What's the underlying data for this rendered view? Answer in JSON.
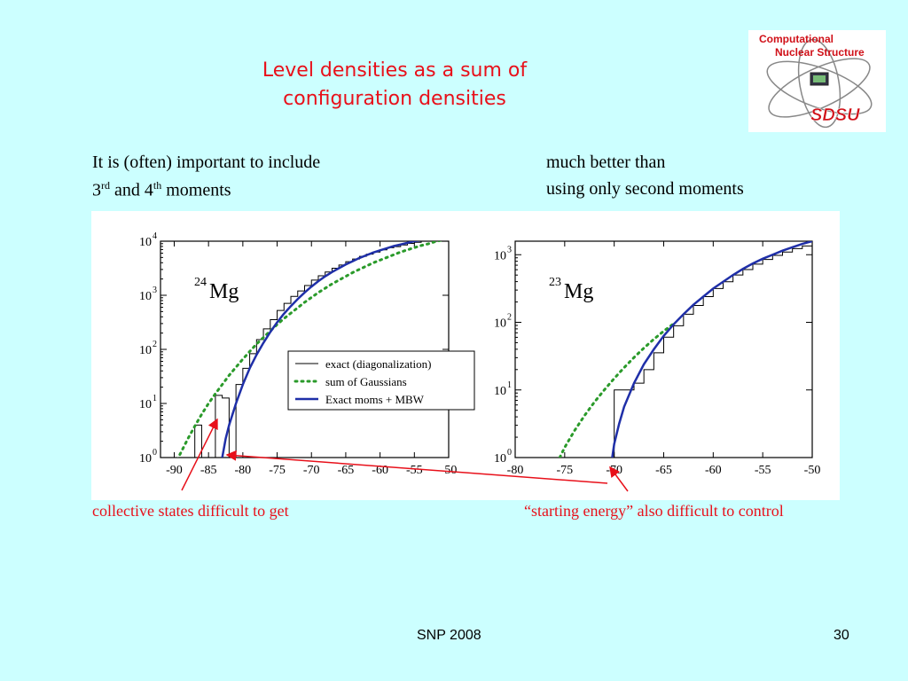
{
  "slide": {
    "title_line1": "Level densities as a sum of",
    "title_line2": "configuration densities",
    "left_text_line1": "It is (often) important to include",
    "left_text_line2_moment3": "3",
    "left_text_line2_sup1": "rd",
    "left_text_line2_and": " and 4",
    "left_text_line2_sup2": "th",
    "left_text_line2_end": " moments",
    "right_text_line1": "much better than",
    "right_text_line2": "using only second moments",
    "caption_left": "collective states difficult to get",
    "caption_right": "“starting energy” also difficult to control",
    "footer_left": "SNP 2008",
    "footer_right": "30",
    "logo_line1": "Computational",
    "logo_line2": "Nuclear Structure",
    "logo_brand": "SDSU"
  },
  "colors": {
    "title": "#e8101a",
    "background": "#ccffff",
    "gaussian": "#2a9a2a",
    "mbw": "#1f2fa8",
    "arrow": "#e8101a"
  },
  "chart_data": [
    {
      "type": "line",
      "annotation_mass": "24",
      "annotation_element": "Mg",
      "xlim": [
        -92,
        -50
      ],
      "ylim": [
        0,
        4
      ],
      "y_log_scale": true,
      "x_ticks": [
        "-90",
        "-85",
        "-80",
        "-75",
        "-70",
        "-65",
        "-60",
        "-55",
        "-50"
      ],
      "y_ticks": [
        "10",
        "10",
        "10",
        "10",
        "10"
      ],
      "y_tick_exponents": [
        "0",
        "1",
        "2",
        "3",
        "4"
      ],
      "legend_position": "lower-right",
      "legend": [
        "exact (diagonalization)",
        "sum of Gaussians",
        "Exact moms + MBW"
      ],
      "series": [
        {
          "name": "exact (diagonalization)",
          "style": "step",
          "x": [
            -88,
            -87,
            -86,
            -85,
            -84,
            -83,
            -82,
            -81,
            -80,
            -79,
            -78,
            -77,
            -76,
            -75,
            -74,
            -73,
            -72,
            -71,
            -70,
            -69,
            -68,
            -67,
            -66,
            -65,
            -64,
            -63,
            -62,
            -61,
            -60,
            -59,
            -58,
            -57,
            -56,
            -55,
            -54,
            -53,
            -52,
            -51,
            -50
          ],
          "y": [
            0,
            0.6,
            0,
            0,
            1.15,
            1.1,
            0,
            1.35,
            1.65,
            1.92,
            2.18,
            2.38,
            2.55,
            2.72,
            2.85,
            2.98,
            3.08,
            3.18,
            3.28,
            3.36,
            3.43,
            3.5,
            3.56,
            3.62,
            3.67,
            3.72,
            3.76,
            3.8,
            3.84,
            3.88,
            3.9,
            3.93,
            3.96,
            3.98,
            4.0,
            4.02,
            4.04,
            4.06,
            4.07
          ]
        },
        {
          "name": "sum of Gaussians",
          "style": "dotted",
          "x": [
            -90,
            -89,
            -88,
            -87,
            -86,
            -85,
            -84,
            -83,
            -82,
            -81,
            -80,
            -79,
            -78,
            -77,
            -76,
            -75,
            -74,
            -73,
            -72,
            -71,
            -70,
            -69,
            -68,
            -67,
            -66,
            -65,
            -64,
            -63,
            -62,
            -61,
            -60,
            -59,
            -58,
            -57,
            -56,
            -55,
            -54,
            -53,
            -52,
            -51,
            -50
          ],
          "y": [
            -0.15,
            0.1,
            0.35,
            0.58,
            0.8,
            1.0,
            1.18,
            1.35,
            1.52,
            1.67,
            1.82,
            1.96,
            2.1,
            2.22,
            2.34,
            2.46,
            2.57,
            2.67,
            2.77,
            2.87,
            2.96,
            3.05,
            3.13,
            3.21,
            3.28,
            3.35,
            3.42,
            3.48,
            3.54,
            3.6,
            3.65,
            3.7,
            3.75,
            3.8,
            3.84,
            3.88,
            3.92,
            3.95,
            3.99,
            4.02,
            4.05
          ]
        },
        {
          "name": "Exact moms + MBW",
          "style": "solid",
          "x": [
            -83,
            -82.5,
            -82,
            -81,
            -80,
            -79,
            -78,
            -77,
            -76,
            -75,
            -74,
            -73,
            -72,
            -71,
            -70,
            -69,
            -68,
            -67,
            -66,
            -65,
            -64,
            -63,
            -62,
            -61,
            -60,
            -59,
            -58,
            -57,
            -56,
            -55,
            -54,
            -53,
            -52,
            -51,
            -50
          ],
          "y": [
            0,
            0.35,
            0.6,
            1.0,
            1.35,
            1.65,
            1.9,
            2.12,
            2.32,
            2.5,
            2.66,
            2.8,
            2.93,
            3.05,
            3.16,
            3.26,
            3.35,
            3.43,
            3.5,
            3.57,
            3.63,
            3.69,
            3.74,
            3.79,
            3.83,
            3.87,
            3.91,
            3.94,
            3.97,
            4.0,
            4.02,
            4.04,
            4.06,
            4.07,
            4.08
          ]
        }
      ]
    },
    {
      "type": "line",
      "annotation_mass": "23",
      "annotation_element": "Mg",
      "xlim": [
        -80,
        -50
      ],
      "ylim": [
        0,
        3.2
      ],
      "y_log_scale": true,
      "x_ticks": [
        "-80",
        "-75",
        "-70",
        "-65",
        "-60",
        "-55",
        "-50"
      ],
      "y_ticks": [
        "10",
        "10",
        "10",
        "10"
      ],
      "y_tick_exponents": [
        "0",
        "1",
        "2",
        "3"
      ],
      "series": [
        {
          "name": "exact (diagonalization)",
          "style": "step",
          "x": [
            -70,
            -69,
            -68,
            -67,
            -66,
            -65,
            -64,
            -63,
            -62,
            -61,
            -60,
            -59,
            -58,
            -57,
            -56,
            -55,
            -54,
            -53,
            -52,
            -51,
            -50
          ],
          "y": [
            1.0,
            1.0,
            1.1,
            1.3,
            1.55,
            1.78,
            1.95,
            2.12,
            2.25,
            2.38,
            2.5,
            2.6,
            2.7,
            2.78,
            2.86,
            2.93,
            2.99,
            3.04,
            3.09,
            3.13,
            3.17
          ]
        },
        {
          "name": "sum of Gaussians",
          "style": "dotted",
          "x": [
            -75.5,
            -75,
            -74,
            -73,
            -72,
            -71,
            -70,
            -69,
            -68,
            -67,
            -66,
            -65,
            -64
          ],
          "y": [
            0,
            0.15,
            0.4,
            0.62,
            0.82,
            1.0,
            1.17,
            1.33,
            1.48,
            1.62,
            1.75,
            1.87,
            1.98
          ]
        },
        {
          "name": "Exact moms + MBW",
          "style": "solid",
          "x": [
            -70.2,
            -70,
            -69.5,
            -69,
            -68,
            -67,
            -66,
            -65,
            -64,
            -63,
            -62,
            -61,
            -60,
            -59,
            -58,
            -57,
            -56,
            -55,
            -54,
            -53,
            -52,
            -51,
            -50
          ],
          "y": [
            0,
            0.2,
            0.5,
            0.75,
            1.1,
            1.38,
            1.6,
            1.8,
            1.97,
            2.12,
            2.26,
            2.38,
            2.5,
            2.6,
            2.7,
            2.79,
            2.87,
            2.94,
            3.0,
            3.06,
            3.11,
            3.16,
            3.2
          ]
        }
      ]
    }
  ]
}
